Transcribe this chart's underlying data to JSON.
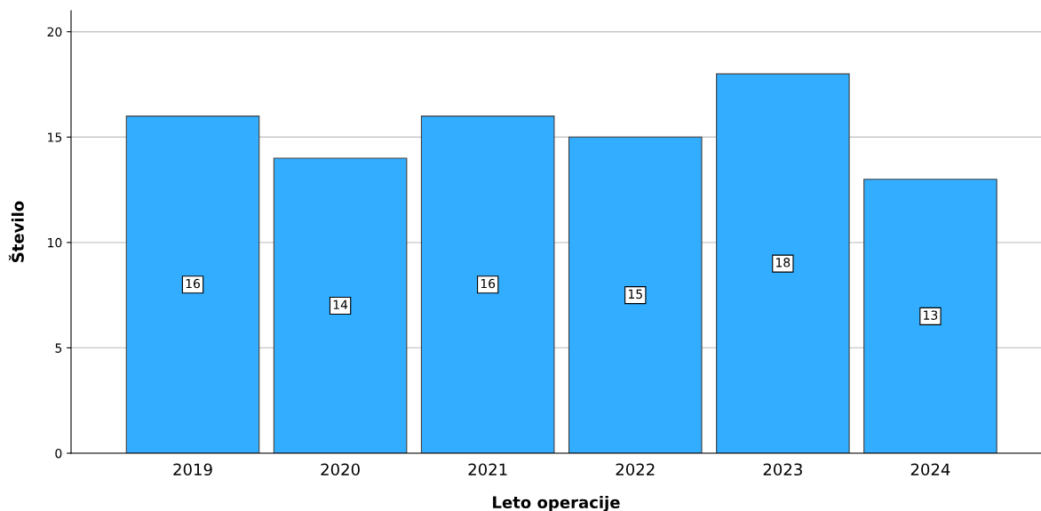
{
  "chart_data": {
    "type": "bar",
    "xlabel": "Leto operacije",
    "ylabel": "Število",
    "categories": [
      "2019",
      "2020",
      "2021",
      "2022",
      "2023",
      "2024"
    ],
    "values": [
      16,
      14,
      16,
      15,
      18,
      13
    ],
    "color": "#33adff",
    "ylim": [
      0,
      21
    ],
    "yticks": [
      0,
      5,
      10,
      15,
      20
    ],
    "grid": "y",
    "data_labels": true
  }
}
